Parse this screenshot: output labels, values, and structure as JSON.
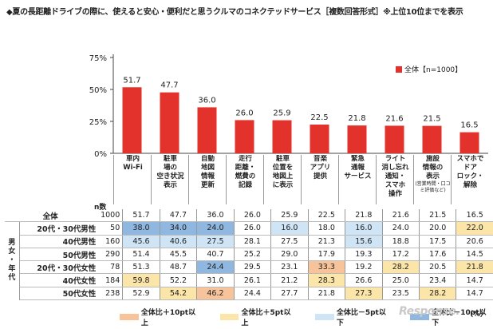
{
  "title": "◆夏の長距離ドライブの際に、使えると安心・便利だと思うクルマのコネクテッドサービス［複数回答形式］※上位10位までを表示",
  "chart_data": {
    "type": "bar",
    "categories": [
      {
        "lines": [
          "車内",
          "Wi-Fi"
        ],
        "sub": ""
      },
      {
        "lines": [
          "駐車",
          "場の",
          "空き状況",
          "表示"
        ],
        "sub": ""
      },
      {
        "lines": [
          "自動",
          "地図",
          "情報",
          "更新"
        ],
        "sub": ""
      },
      {
        "lines": [
          "走行",
          "距離・",
          "燃費の",
          "記録"
        ],
        "sub": ""
      },
      {
        "lines": [
          "駐車",
          "位置を",
          "地図上",
          "に表示"
        ],
        "sub": ""
      },
      {
        "lines": [
          "音楽",
          "アプリ",
          "提供"
        ],
        "sub": ""
      },
      {
        "lines": [
          "緊急",
          "通報",
          "サービス"
        ],
        "sub": ""
      },
      {
        "lines": [
          "ライト",
          "消し忘れ",
          "通知・",
          "スマホ",
          "操作"
        ],
        "sub": ""
      },
      {
        "lines": [
          "施設",
          "情報の",
          "表示"
        ],
        "sub": "(営業時間・口コミ評価など)"
      },
      {
        "lines": [
          "スマホで",
          "ドア",
          "ロック・",
          "解除"
        ],
        "sub": ""
      }
    ],
    "values": [
      51.7,
      47.7,
      36.0,
      26.0,
      25.9,
      22.5,
      21.8,
      21.6,
      21.5,
      16.5
    ],
    "legend": "全体【n=1000】",
    "yticks": [
      "0%",
      "25%",
      "50%",
      "75%"
    ],
    "ylim": [
      0,
      75
    ],
    "bar_color": "#e2322b",
    "n_label": "n数",
    "group_label": "男女・年代",
    "rows": [
      {
        "label": "全体",
        "n": "1000",
        "values": [
          "51.7",
          "47.7",
          "36.0",
          "26.0",
          "25.9",
          "22.5",
          "21.8",
          "21.6",
          "21.5",
          "16.5"
        ],
        "shade": [
          "",
          "",
          "",
          "",
          "",
          "",
          "",
          "",
          "",
          ""
        ]
      },
      {
        "label": "20代・30代男性",
        "n": "50",
        "values": [
          "38.0",
          "34.0",
          "24.0",
          "26.0",
          "16.0",
          "18.0",
          "16.0",
          "24.0",
          "20.0",
          "22.0"
        ],
        "shade": [
          "lo10",
          "lo10",
          "lo10",
          "",
          "lo5",
          "",
          "lo5",
          "",
          "",
          "hi5"
        ]
      },
      {
        "label": "40代男性",
        "n": "160",
        "values": [
          "45.6",
          "40.6",
          "27.5",
          "28.1",
          "27.5",
          "21.3",
          "15.6",
          "18.8",
          "17.5",
          "20.6"
        ],
        "shade": [
          "lo5",
          "lo5",
          "lo5",
          "",
          "",
          "",
          "lo5",
          "",
          "",
          ""
        ]
      },
      {
        "label": "50代男性",
        "n": "290",
        "values": [
          "51.4",
          "45.5",
          "40.7",
          "25.2",
          "29.0",
          "17.9",
          "19.3",
          "17.2",
          "17.6",
          "14.5"
        ],
        "shade": [
          "",
          "",
          "",
          "",
          "",
          "",
          "",
          "",
          "",
          ""
        ]
      },
      {
        "label": "20代・30代女性",
        "n": "78",
        "values": [
          "51.3",
          "48.7",
          "24.4",
          "29.5",
          "23.1",
          "33.3",
          "19.2",
          "28.2",
          "20.5",
          "21.8"
        ],
        "shade": [
          "",
          "",
          "lo10",
          "",
          "",
          "hi10",
          "",
          "hi5",
          "",
          "hi5"
        ]
      },
      {
        "label": "40代女性",
        "n": "184",
        "values": [
          "59.8",
          "52.2",
          "31.0",
          "26.1",
          "21.2",
          "28.3",
          "26.6",
          "25.0",
          "23.4",
          "14.7"
        ],
        "shade": [
          "hi5",
          "",
          "",
          "",
          "",
          "hi5",
          "",
          "",
          "",
          ""
        ]
      },
      {
        "label": "50代女性",
        "n": "238",
        "values": [
          "52.9",
          "54.2",
          "46.2",
          "24.4",
          "27.7",
          "21.8",
          "27.3",
          "23.5",
          "28.2",
          "14.7"
        ],
        "shade": [
          "",
          "hi5",
          "hi10",
          "",
          "",
          "",
          "hi5",
          "",
          "hi5",
          ""
        ]
      }
    ],
    "keys": [
      {
        "id": "hi10",
        "label": "全体比＋10pt以上",
        "color": "#f6c39a"
      },
      {
        "id": "hi5",
        "label": "全体比＋5pt以上",
        "color": "#fbe5a8"
      },
      {
        "id": "lo5",
        "label": "全体比－5pt以下",
        "color": "#cfe5f6"
      },
      {
        "id": "lo10",
        "label": "全体比－10pt以下",
        "color": "#8fb7e0"
      }
    ],
    "unit": "（%）"
  },
  "watermark": "Response."
}
